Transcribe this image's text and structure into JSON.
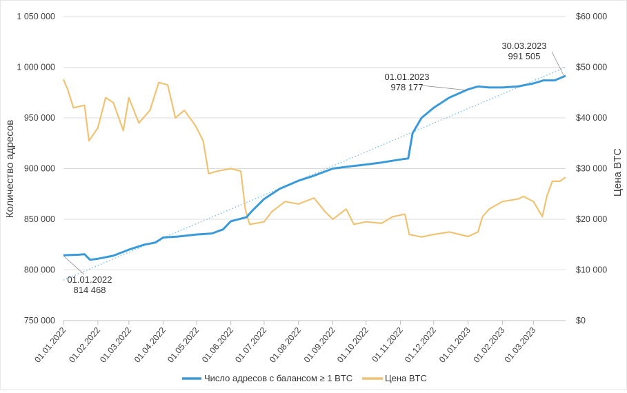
{
  "chart_data": {
    "type": "line",
    "ylabel_left": "Количество адресов",
    "ylabel_right": "Цена BTC",
    "ylim_left": [
      750000,
      1050000
    ],
    "ylim_right": [
      0,
      60000
    ],
    "xlim": [
      "01.01.2022",
      "30.03.2023"
    ],
    "grid": true,
    "legend_position": "bottom",
    "y_ticks_left": [
      "750 000",
      "800 000",
      "850 000",
      "900 000",
      "950 000",
      "1 000 000",
      "1 050 000"
    ],
    "y_ticks_right": [
      "$0",
      "$10 000",
      "$20 000",
      "$30 000",
      "$40 000",
      "$50 000",
      "$60 000"
    ],
    "x_ticks": [
      "01.01.2022",
      "01.02.2022",
      "01.03.2022",
      "01.04.2022",
      "01.05.2022",
      "01.06.2022",
      "01.07.2022",
      "01.08.2022",
      "01.09.2022",
      "01.10.2022",
      "01.11.2022",
      "01.12.2022",
      "01.01.2023",
      "01.02.2023",
      "01.03.2023"
    ],
    "series": [
      {
        "name": "Число адресов с балансом ≥ 1 BTC",
        "axis": "left",
        "color": "#3a9ad9",
        "x": [
          "01.01.2022",
          "15.01.2022",
          "20.01.2022",
          "25.01.2022",
          "01.02.2022",
          "15.02.2022",
          "01.03.2022",
          "15.03.2022",
          "25.03.2022",
          "01.04.2022",
          "15.04.2022",
          "01.05.2022",
          "15.05.2022",
          "25.05.2022",
          "01.06.2022",
          "15.06.2022",
          "20.06.2022",
          "01.07.2022",
          "15.07.2022",
          "01.08.2022",
          "15.08.2022",
          "01.09.2022",
          "15.09.2022",
          "01.10.2022",
          "15.10.2022",
          "01.11.2022",
          "08.11.2022",
          "12.11.2022",
          "20.11.2022",
          "01.12.2022",
          "15.12.2022",
          "01.01.2023",
          "10.01.2023",
          "20.01.2023",
          "01.02.2023",
          "15.02.2023",
          "01.03.2023",
          "10.03.2023",
          "20.03.2023",
          "30.03.2023"
        ],
        "values": [
          814468,
          815000,
          815500,
          810000,
          811000,
          814000,
          820000,
          825000,
          827000,
          832000,
          833000,
          835000,
          836000,
          840000,
          848000,
          852000,
          858000,
          870000,
          880000,
          888000,
          893000,
          900000,
          902000,
          904000,
          906000,
          909000,
          910000,
          935000,
          950000,
          960000,
          970000,
          978177,
          981000,
          980000,
          980000,
          981000,
          984000,
          987000,
          987000,
          991505
        ]
      },
      {
        "name": "Цена BTC",
        "axis": "right",
        "color": "#f0c374",
        "x": [
          "01.01.2022",
          "05.01.2022",
          "10.01.2022",
          "20.01.2022",
          "24.01.2022",
          "01.02.2022",
          "08.02.2022",
          "15.02.2022",
          "24.02.2022",
          "01.03.2022",
          "10.03.2022",
          "20.03.2022",
          "28.03.2022",
          "05.04.2022",
          "12.04.2022",
          "20.04.2022",
          "30.04.2022",
          "07.05.2022",
          "12.05.2022",
          "20.05.2022",
          "01.06.2022",
          "10.06.2022",
          "14.06.2022",
          "18.06.2022",
          "01.07.2022",
          "08.07.2022",
          "20.07.2022",
          "01.08.2022",
          "15.08.2022",
          "25.08.2022",
          "01.09.2022",
          "13.09.2022",
          "20.09.2022",
          "01.10.2022",
          "15.10.2022",
          "25.10.2022",
          "05.11.2022",
          "09.11.2022",
          "20.11.2022",
          "01.12.2022",
          "15.12.2022",
          "01.01.2023",
          "10.01.2023",
          "14.01.2023",
          "20.01.2023",
          "01.02.2023",
          "15.02.2023",
          "20.02.2023",
          "01.03.2023",
          "09.03.2023",
          "13.03.2023",
          "18.03.2023",
          "25.03.2023",
          "30.03.2023"
        ],
        "values": [
          47600,
          45500,
          42000,
          42500,
          35500,
          38000,
          44000,
          43000,
          37500,
          44000,
          39000,
          41500,
          47000,
          46500,
          40000,
          41500,
          38500,
          35500,
          29000,
          29500,
          30000,
          29500,
          22000,
          19000,
          19500,
          21500,
          23500,
          23000,
          24200,
          21500,
          20000,
          22000,
          19000,
          19500,
          19200,
          20500,
          21000,
          17000,
          16500,
          17000,
          17500,
          16600,
          17500,
          20500,
          22000,
          23500,
          24000,
          24500,
          23500,
          20500,
          24500,
          27500,
          27500,
          28300
        ]
      }
    ],
    "trendline": {
      "axis": "left",
      "style": "dotted",
      "color": "#7fbfe6",
      "x": [
        "01.01.2022",
        "30.03.2023"
      ],
      "values": [
        790000,
        1000000
      ]
    },
    "annotations": [
      {
        "date": "01.01.2022",
        "value": "814 468"
      },
      {
        "date": "01.01.2023",
        "value": "978 177"
      },
      {
        "date": "30.03.2023",
        "value": "991 505"
      }
    ]
  }
}
